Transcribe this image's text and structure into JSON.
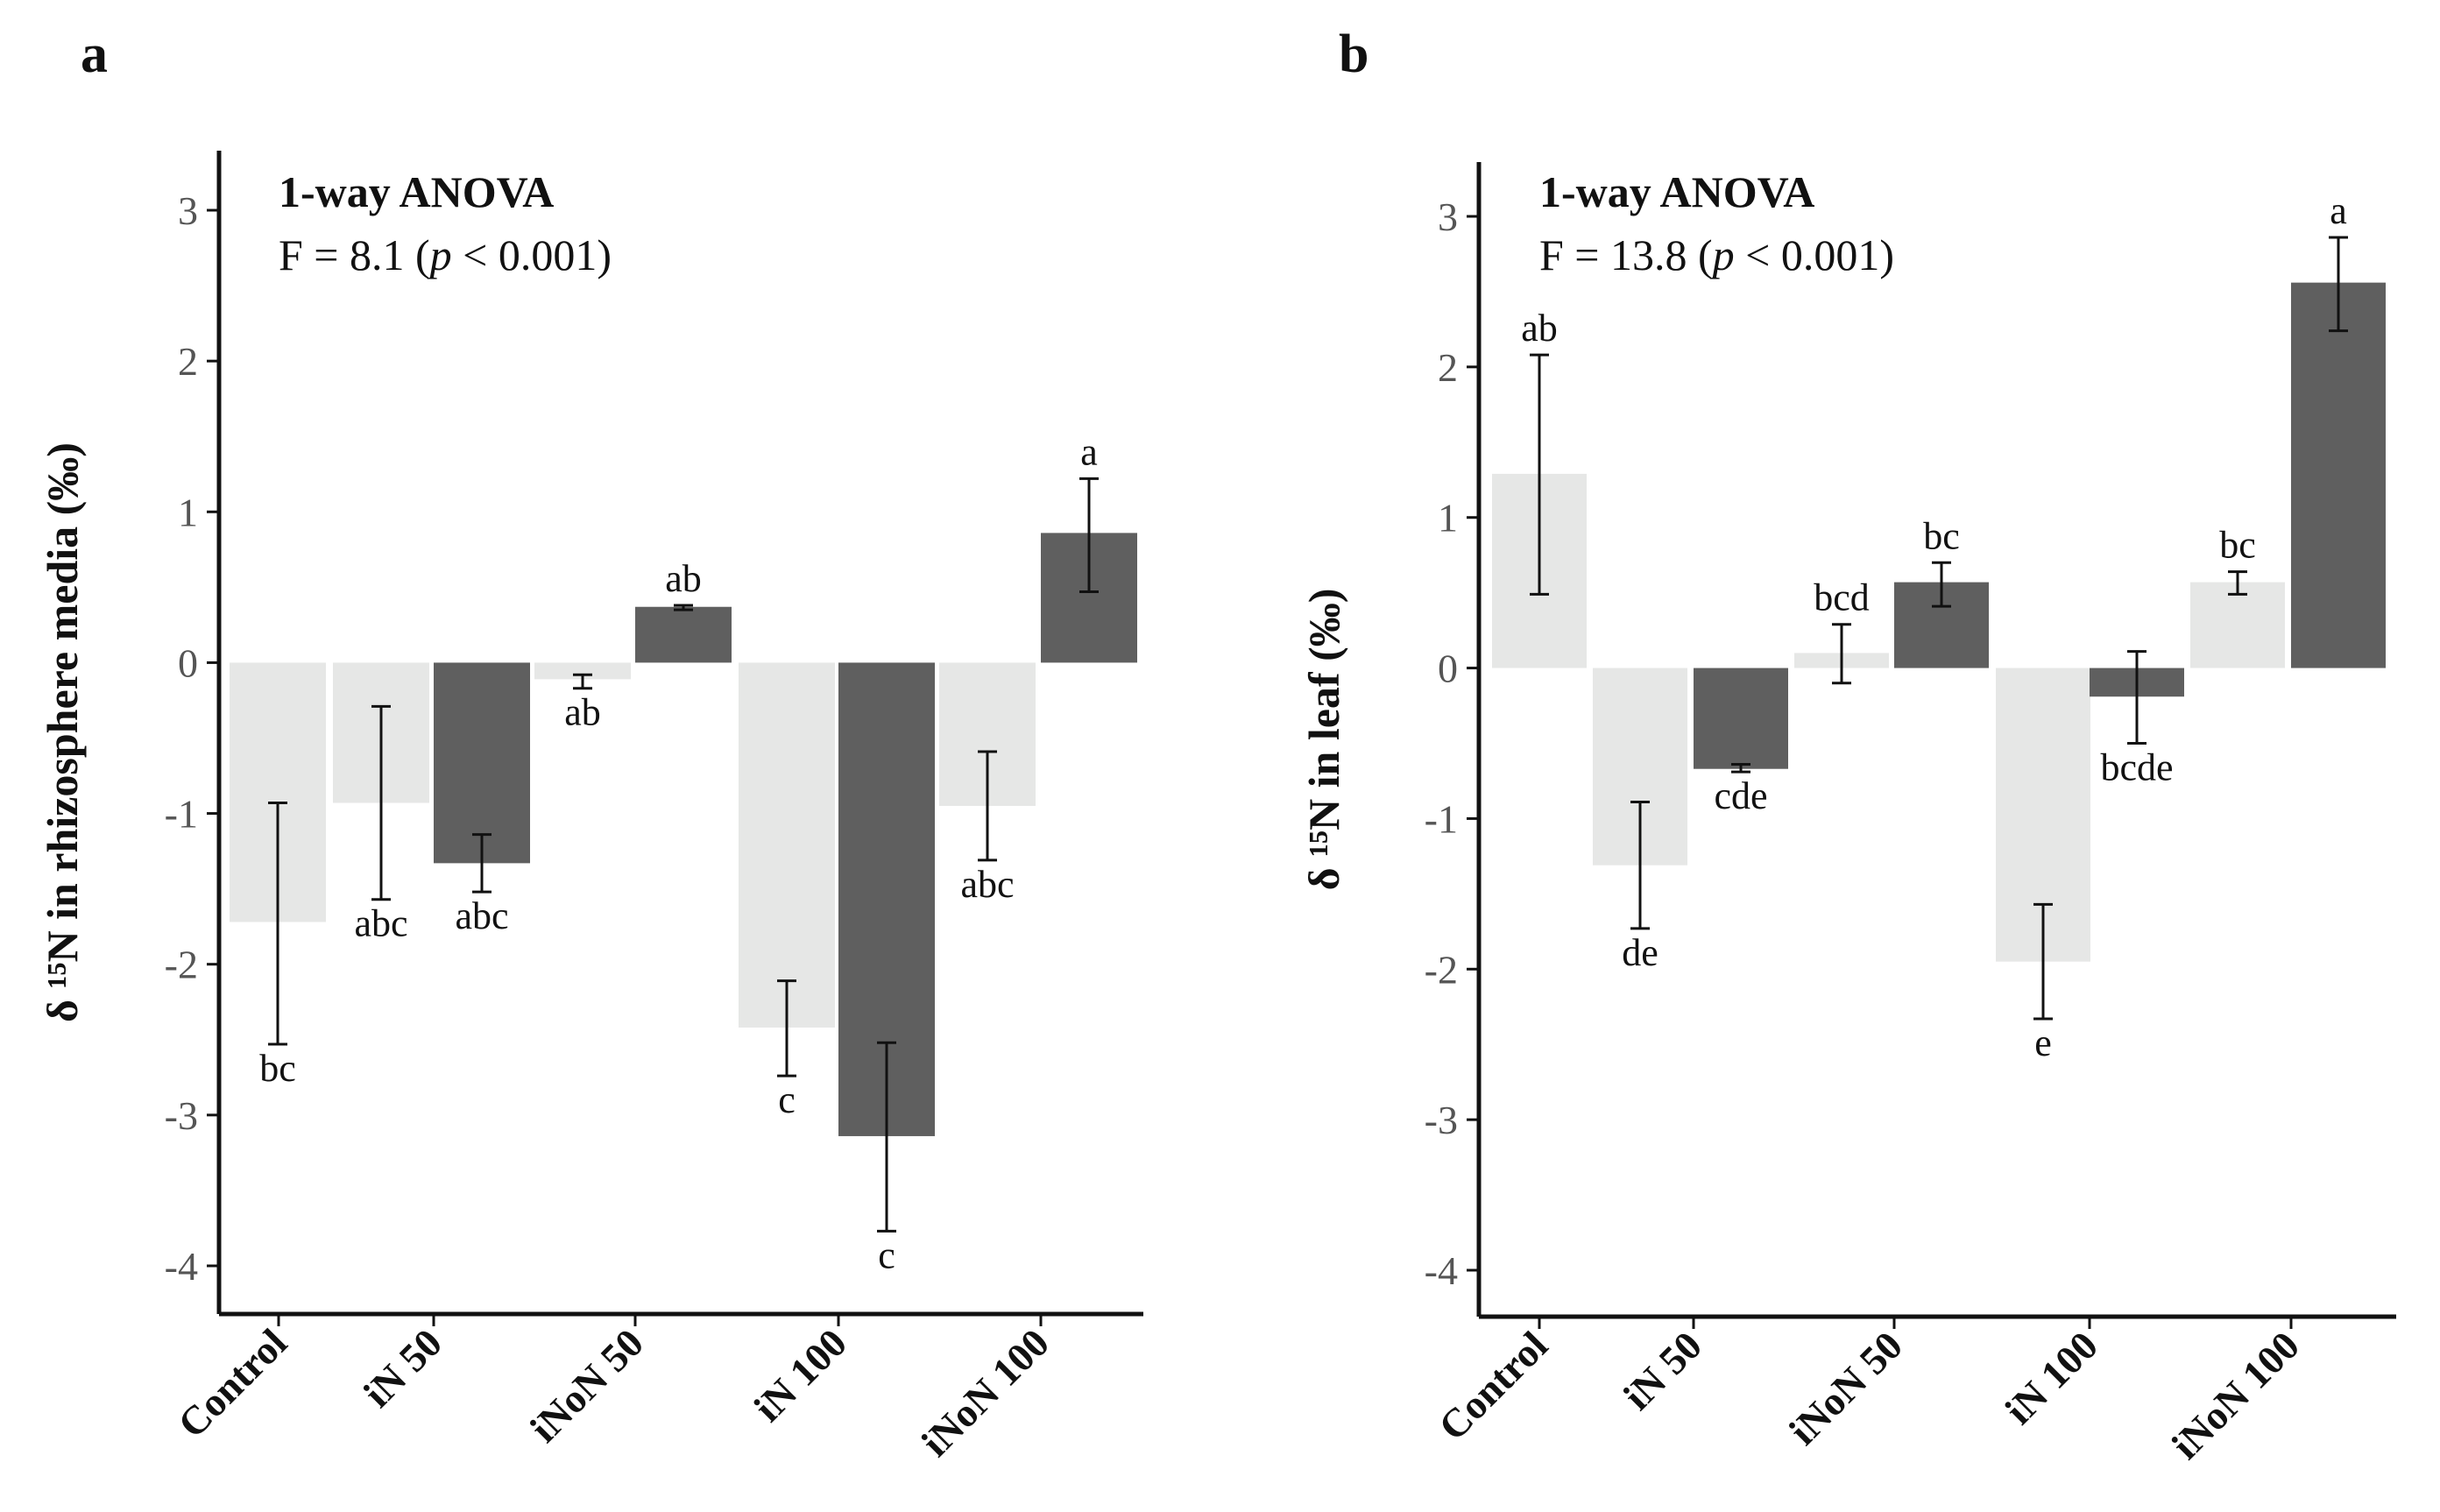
{
  "figure": {
    "colors": {
      "light_bar": "#e6e7e6",
      "dark_bar": "#5f5f5f",
      "axis": "#111111",
      "tick_label": "#555555"
    }
  },
  "chart_data": [
    {
      "type": "bar",
      "panel_label": "a",
      "ylabel": "δ ¹⁵N in rhizosphere media (‰)",
      "ylim": [
        -4.3,
        3.35
      ],
      "yticks": [
        -4,
        -3,
        -2,
        -1,
        0,
        1,
        2,
        3
      ],
      "ytick_labels": [
        "-4",
        "-3",
        "-2",
        "-1",
        "0",
        "1",
        "2",
        "3"
      ],
      "group_labels": [
        "Control",
        "iN 50",
        "iNoN 50",
        "iN 100",
        "iNoN 100"
      ],
      "annotation": {
        "title": "1-way ANOVA",
        "stat_prefix": "F = 8.1 (",
        "stat_p": "p",
        "stat_suffix": " <  0.001)"
      },
      "bars": [
        {
          "group": "Control",
          "tone": "light",
          "value": -1.72,
          "err_low": -2.53,
          "err_high": -0.93,
          "letter": "bc"
        },
        {
          "group": "iN 50",
          "tone": "light",
          "value": -0.93,
          "err_low": -1.57,
          "err_high": -0.29,
          "letter": "abc"
        },
        {
          "group": "iN 50",
          "tone": "dark",
          "value": -1.33,
          "err_low": -1.52,
          "err_high": -1.14,
          "letter": "abc"
        },
        {
          "group": "iNoN 50",
          "tone": "light",
          "value": -0.11,
          "err_low": -0.17,
          "err_high": -0.08,
          "letter": "ab"
        },
        {
          "group": "iNoN 50",
          "tone": "dark",
          "value": 0.37,
          "err_low": 0.35,
          "err_high": 0.38,
          "letter": "ab"
        },
        {
          "group": "iN 100",
          "tone": "light",
          "value": -2.42,
          "err_low": -2.74,
          "err_high": -2.11,
          "letter": "c"
        },
        {
          "group": "iN 100",
          "tone": "dark",
          "value": -3.14,
          "err_low": -3.77,
          "err_high": -2.52,
          "letter": "c"
        },
        {
          "group": "iNoN 100",
          "tone": "light",
          "value": -0.95,
          "err_low": -1.31,
          "err_high": -0.59,
          "letter": "abc"
        },
        {
          "group": "iNoN 100",
          "tone": "dark",
          "value": 0.86,
          "err_low": 0.47,
          "err_high": 1.22,
          "letter": "a"
        }
      ]
    },
    {
      "type": "bar",
      "panel_label": "b",
      "ylabel": "δ ¹⁵N in leaf (‰)",
      "ylim": [
        -4.3,
        3.35
      ],
      "yticks": [
        -4,
        -3,
        -2,
        -1,
        0,
        1,
        2,
        3
      ],
      "ytick_labels": [
        "-4",
        "-3",
        "-2",
        "-1",
        "0",
        "1",
        "2",
        "3"
      ],
      "group_labels": [
        "Control",
        "iN 50",
        "iNoN 50",
        "iN 100",
        "iNoN 100"
      ],
      "annotation": {
        "title": "1-way ANOVA",
        "stat_prefix": "F = 13.8 (",
        "stat_p": "p",
        "stat_suffix": " <  0.001)"
      },
      "bars": [
        {
          "group": "Control",
          "tone": "light",
          "value": 1.29,
          "err_low": 0.49,
          "err_high": 2.08,
          "letter": "ab"
        },
        {
          "group": "iN 50",
          "tone": "light",
          "value": -1.31,
          "err_low": -1.73,
          "err_high": -0.89,
          "letter": "de"
        },
        {
          "group": "iN 50",
          "tone": "dark",
          "value": -0.67,
          "err_low": -0.69,
          "err_high": -0.64,
          "letter": "cde"
        },
        {
          "group": "iNoN 50",
          "tone": "light",
          "value": 0.1,
          "err_low": -0.1,
          "err_high": 0.29,
          "letter": "bcd"
        },
        {
          "group": "iNoN 50",
          "tone": "dark",
          "value": 0.57,
          "err_low": 0.41,
          "err_high": 0.7,
          "letter": "bc"
        },
        {
          "group": "iN 100",
          "tone": "light",
          "value": -1.95,
          "err_low": -2.33,
          "err_high": -1.57,
          "letter": "e"
        },
        {
          "group": "iN 100",
          "tone": "dark",
          "value": -0.19,
          "err_low": -0.5,
          "err_high": 0.11,
          "letter": "bcde"
        },
        {
          "group": "iNoN 100",
          "tone": "light",
          "value": 0.57,
          "err_low": 0.49,
          "err_high": 0.64,
          "letter": "bc"
        },
        {
          "group": "iNoN 100",
          "tone": "dark",
          "value": 2.56,
          "err_low": 2.24,
          "err_high": 2.86,
          "letter": "a"
        }
      ]
    }
  ]
}
